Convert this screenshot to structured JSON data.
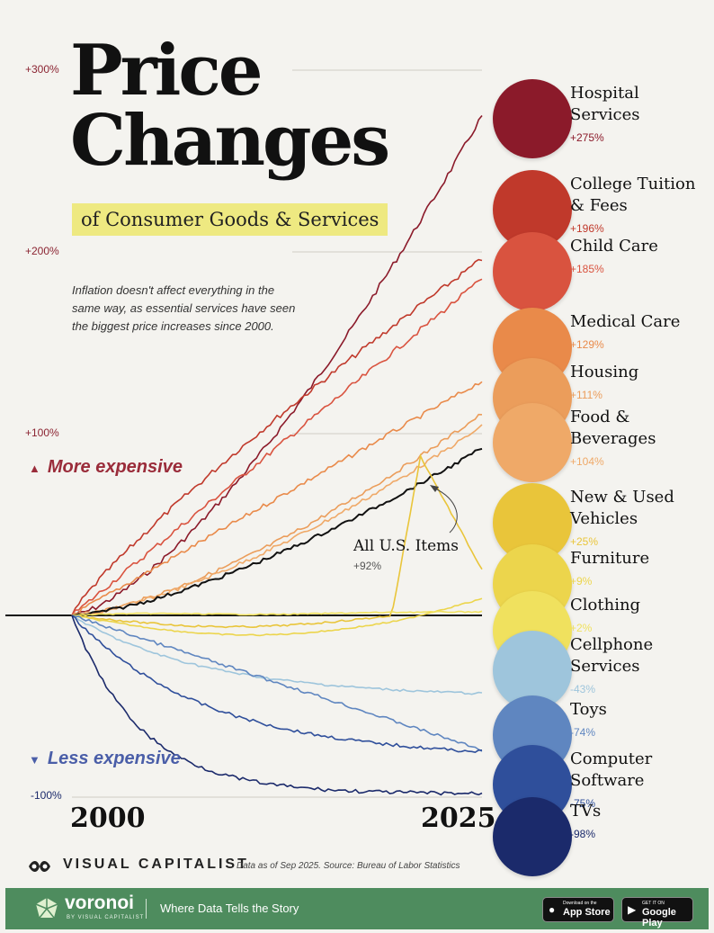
{
  "title_line1": "Price",
  "title_line2": "Changes",
  "subtitle": "of Consumer Goods & Services",
  "intro": "Inflation doesn't affect everything in the same way, as essential services have seen the biggest price increases since 2000.",
  "legend": {
    "up": "More expensive",
    "down": "Less expensive"
  },
  "years": {
    "start": "2000",
    "end": "2025"
  },
  "all_items": {
    "label": "All U.S. Items",
    "pct": "+92%"
  },
  "categories": [
    {
      "name": "Hospital Services",
      "pct": "+275%",
      "color": "#8b1a2a",
      "icon": "stethoscope-icon"
    },
    {
      "name": "College Tuition & Fees",
      "pct": "+196%",
      "color": "#c0392b",
      "icon": "graduation-cap-icon"
    },
    {
      "name": "Child Care",
      "pct": "+185%",
      "color": "#d9533f",
      "icon": "baby-bottle-icon"
    },
    {
      "name": "Medical Care",
      "pct": "+129%",
      "color": "#e98a4a",
      "icon": "pill-bottle-icon"
    },
    {
      "name": "Housing",
      "pct": "+111%",
      "color": "#eb9d5b",
      "icon": "house-icon"
    },
    {
      "name": "Food & Beverages",
      "pct": "+104%",
      "color": "#efa968",
      "icon": "milk-bottle-icon"
    },
    {
      "name": "New & Used Vehicles",
      "pct": "+25%",
      "color": "#e9c53a",
      "icon": "car-icon"
    },
    {
      "name": "Furniture",
      "pct": "+9%",
      "color": "#ecd54c",
      "icon": "armchair-icon"
    },
    {
      "name": "Clothing",
      "pct": "+2%",
      "color": "#f0e15e",
      "icon": "folded-clothes-icon"
    },
    {
      "name": "Cellphone Services",
      "pct": "-43%",
      "color": "#9ec5dc",
      "icon": "smartphone-icon"
    },
    {
      "name": "Toys",
      "pct": "-74%",
      "color": "#5f86c0",
      "icon": "toy-plane-icon"
    },
    {
      "name": "Computer Software",
      "pct": "-75%",
      "color": "#2f4f9b",
      "icon": "laptop-icon"
    },
    {
      "name": "TVs",
      "pct": "-98%",
      "color": "#1b2a6b",
      "icon": "tv-icon"
    }
  ],
  "source": "Data as of Sep 2025. Source: Bureau of Labor Statistics",
  "brand": "VISUAL CAPITALIST",
  "footer": {
    "name": "voronoi",
    "sub": "BY VISUAL CAPITALIST",
    "tagline": "Where Data Tells the Story",
    "app_store_small": "Download on the",
    "app_store": "App Store",
    "google_small": "GET IT ON",
    "google": "Google Play"
  },
  "chart_data": {
    "type": "line",
    "x": [
      "2000",
      "2025"
    ],
    "ylim": [
      -100,
      300
    ],
    "yticks": [
      "+300%",
      "+200%",
      "+100%",
      "-100%"
    ],
    "ytick_values": [
      300,
      200,
      100,
      -100
    ],
    "series": [
      {
        "name": "Hospital Services",
        "final": 275,
        "shape": "convex",
        "color": "#8b1a2a"
      },
      {
        "name": "College Tuition & Fees",
        "final": 196,
        "shape": "concave",
        "color": "#c0392b"
      },
      {
        "name": "Child Care",
        "final": 185,
        "shape": "linear",
        "color": "#d9533f"
      },
      {
        "name": "Medical Care",
        "final": 129,
        "shape": "linear",
        "color": "#e98a4a"
      },
      {
        "name": "Housing",
        "final": 111,
        "shape": "convex",
        "color": "#eb9d5b"
      },
      {
        "name": "Food & Beverages",
        "final": 104,
        "shape": "convex",
        "color": "#efa968"
      },
      {
        "name": "All U.S. Items",
        "final": 92,
        "shape": "convex",
        "color": "#111111"
      },
      {
        "name": "New & Used Vehicles",
        "final": 25,
        "shape": "spike",
        "color": "#e9c53a"
      },
      {
        "name": "Furniture",
        "final": 9,
        "shape": "dip",
        "color": "#ecd54c"
      },
      {
        "name": "Clothing",
        "final": 2,
        "shape": "flat",
        "color": "#f0e15e"
      },
      {
        "name": "Cellphone Services",
        "final": -43,
        "shape": "decay",
        "color": "#9ec5dc"
      },
      {
        "name": "Toys",
        "final": -74,
        "shape": "linear",
        "color": "#5f86c0"
      },
      {
        "name": "Computer Software",
        "final": -75,
        "shape": "decay",
        "color": "#2f4f9b"
      },
      {
        "name": "TVs",
        "final": -98,
        "shape": "fastdecay",
        "color": "#1b2a6b"
      }
    ]
  }
}
